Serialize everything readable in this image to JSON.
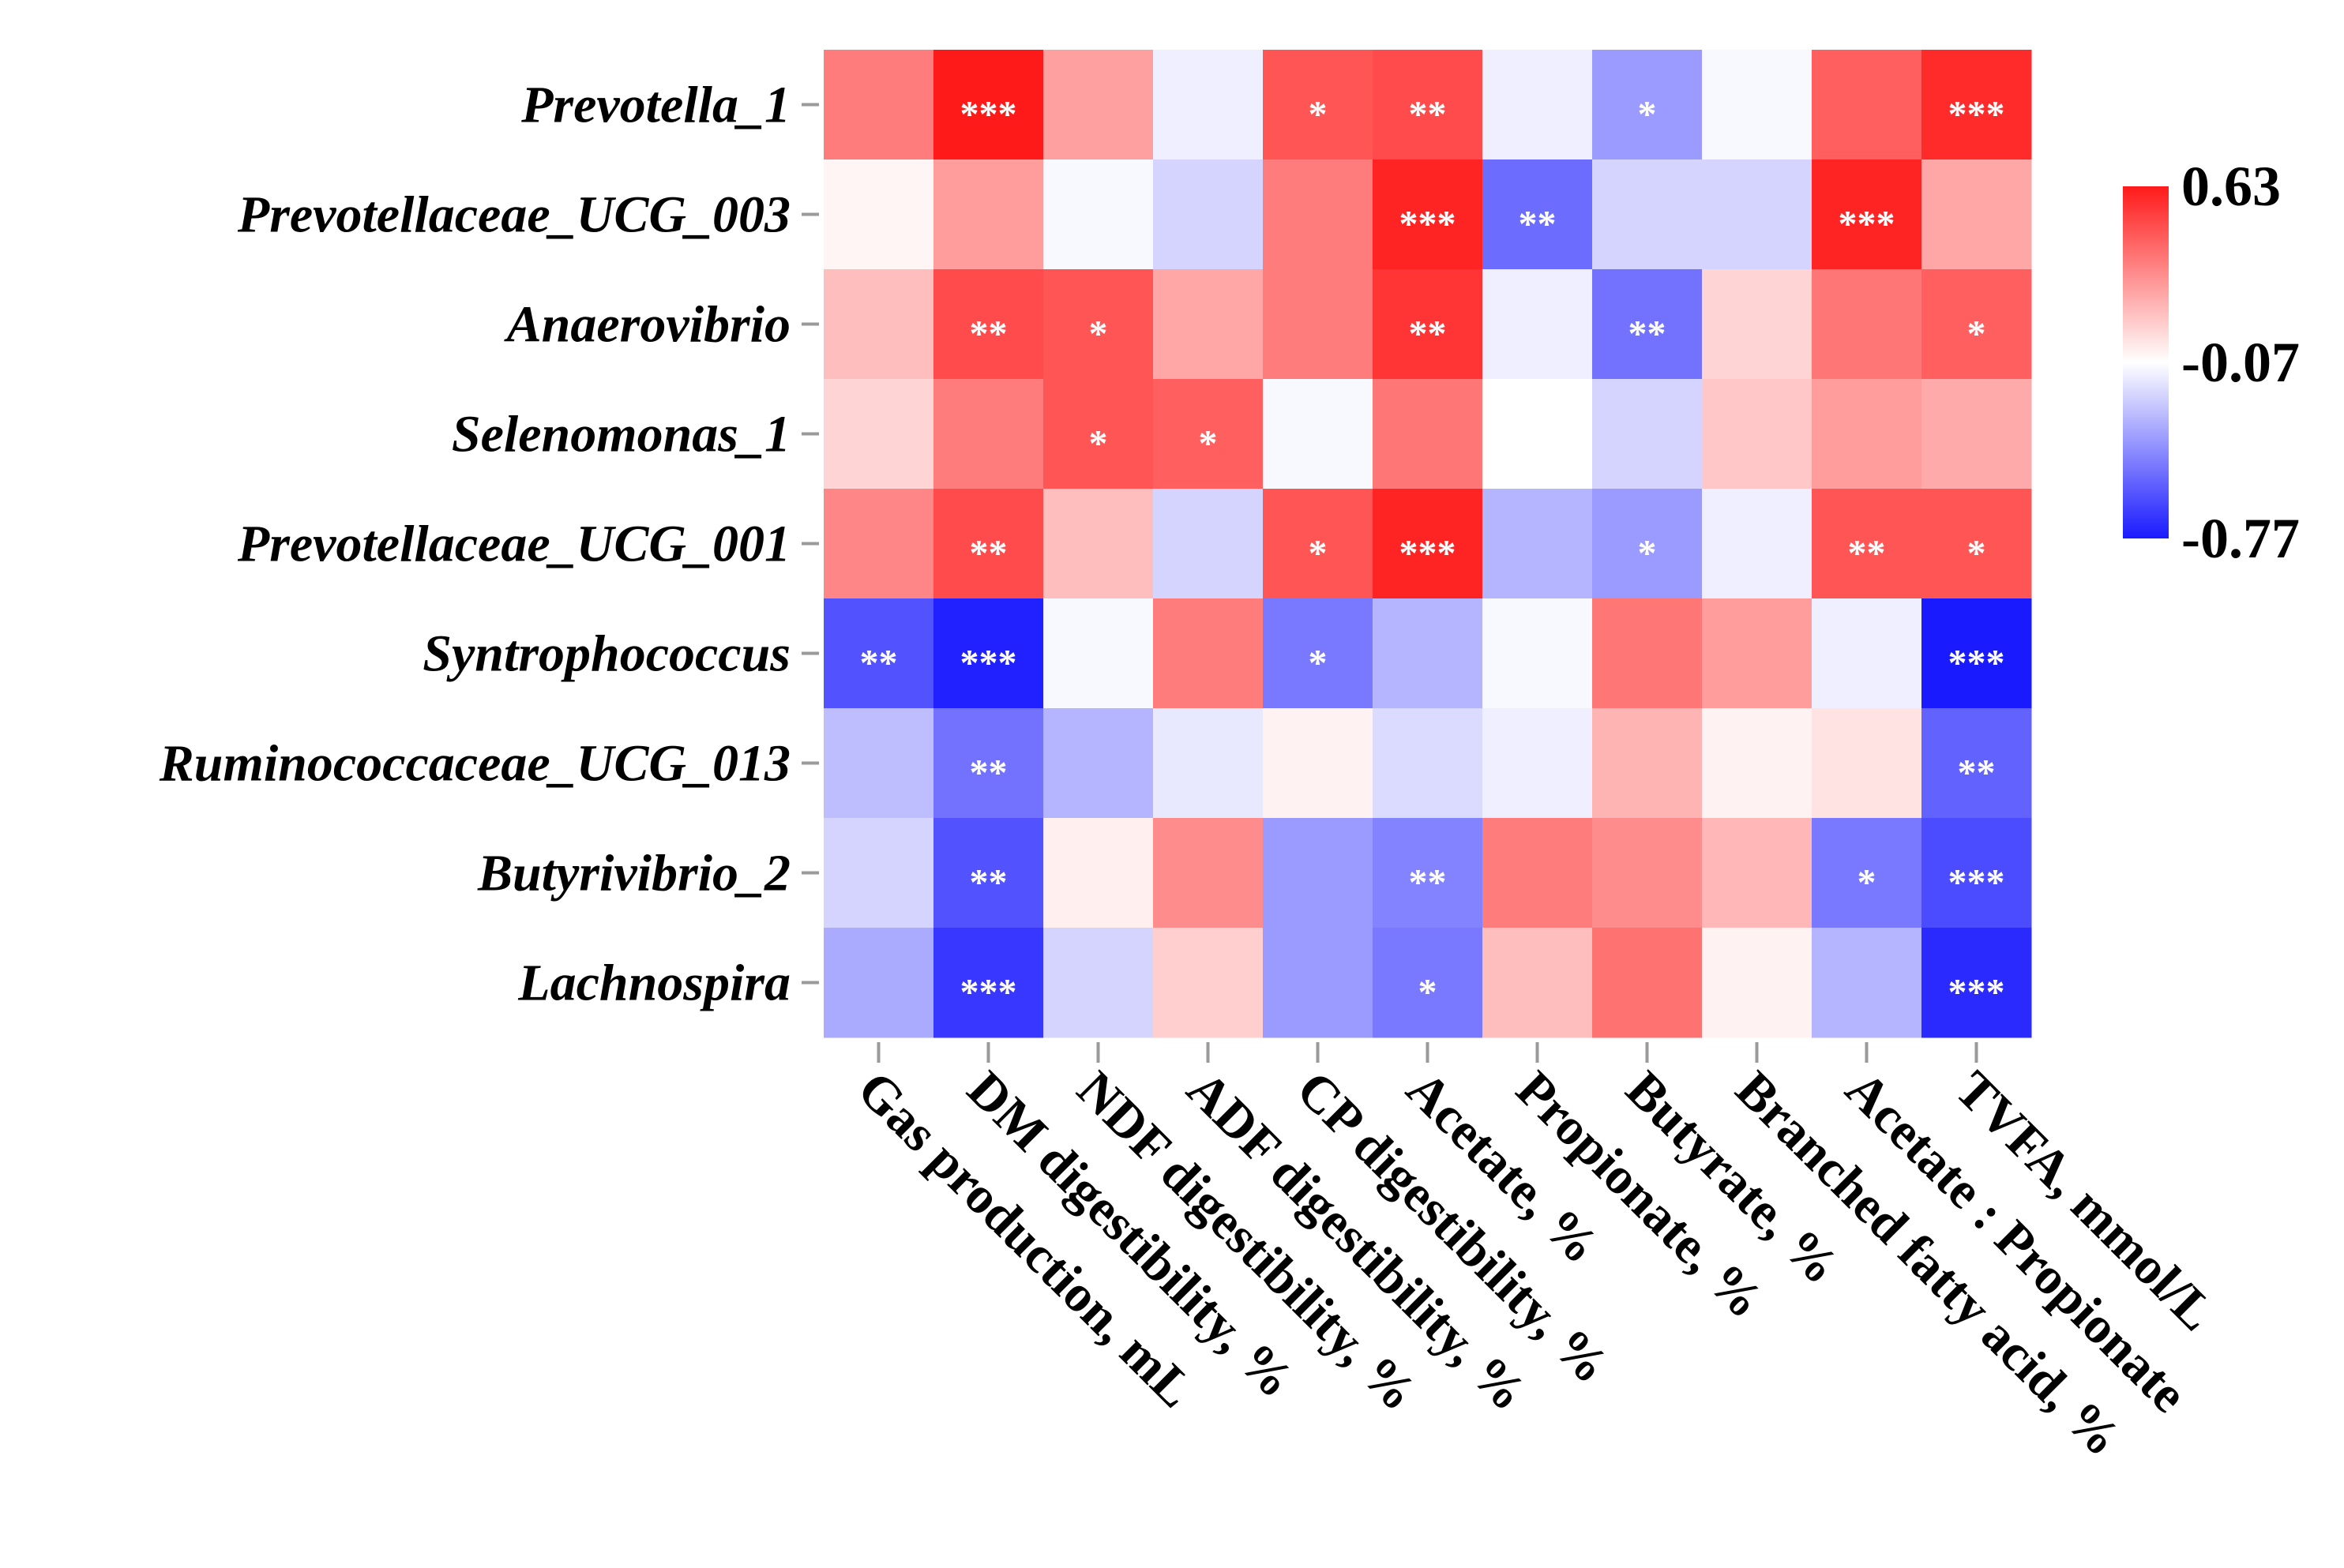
{
  "chart_data": {
    "type": "heatmap",
    "rows": [
      "Prevotella_1",
      "Prevotellaceae_UCG_003",
      "Anaerovibrio",
      "Selenomonas_1",
      "Prevotellaceae_UCG_001",
      "Syntrophococcus",
      "Ruminococcaceae_UCG_013",
      "Butyrivibrio_2",
      "Lachnospira"
    ],
    "columns": [
      "Gas production, mL",
      "DM digestibility, %",
      "NDF digestibility, %",
      "ADF digestibility, %",
      "CP digestibility, %",
      "Acetate, %",
      "Propionate, %",
      "Butyrate, %",
      "Branched fatty acid, %",
      "Acetate : Propionate",
      "TVFA, mmol/L"
    ],
    "values": [
      [
        0.33,
        0.63,
        0.22,
        -0.12,
        0.45,
        0.48,
        -0.12,
        -0.38,
        -0.09,
        0.42,
        0.58
      ],
      [
        -0.04,
        0.23,
        -0.09,
        -0.2,
        0.33,
        0.6,
        -0.52,
        -0.2,
        -0.2,
        0.6,
        0.2
      ],
      [
        0.13,
        0.48,
        0.45,
        0.2,
        0.33,
        0.55,
        -0.12,
        -0.5,
        0.06,
        0.35,
        0.42
      ],
      [
        0.06,
        0.33,
        0.45,
        0.42,
        -0.09,
        0.35,
        -0.07,
        -0.2,
        0.1,
        0.23,
        0.19
      ],
      [
        0.3,
        0.48,
        0.13,
        -0.2,
        0.45,
        0.6,
        -0.3,
        -0.38,
        -0.12,
        0.45,
        0.45
      ],
      [
        -0.6,
        -0.75,
        -0.09,
        0.33,
        -0.48,
        -0.3,
        -0.09,
        0.35,
        0.23,
        -0.12,
        -0.77
      ],
      [
        -0.27,
        -0.5,
        -0.3,
        -0.14,
        -0.03,
        -0.18,
        -0.12,
        0.16,
        -0.03,
        0.02,
        -0.55
      ],
      [
        -0.2,
        -0.6,
        -0.02,
        0.28,
        -0.38,
        -0.45,
        0.33,
        0.28,
        0.15,
        -0.48,
        -0.62
      ],
      [
        -0.33,
        -0.68,
        -0.2,
        0.08,
        -0.38,
        -0.48,
        0.13,
        0.36,
        -0.03,
        -0.3,
        -0.72
      ]
    ],
    "significance": [
      [
        "",
        "***",
        "",
        "",
        "*",
        "**",
        "",
        "*",
        "",
        "",
        "***"
      ],
      [
        "",
        "",
        "",
        "",
        "",
        "***",
        "**",
        "",
        "",
        "***",
        ""
      ],
      [
        "",
        "**",
        "*",
        "",
        "",
        "**",
        "",
        "**",
        "",
        "",
        "*"
      ],
      [
        "",
        "",
        "*",
        "*",
        "",
        "",
        "",
        "",
        "",
        "",
        ""
      ],
      [
        "",
        "**",
        "",
        "",
        "*",
        "***",
        "",
        "*",
        "",
        "**",
        "*"
      ],
      [
        "**",
        "***",
        "",
        "",
        "*",
        "",
        "",
        "",
        "",
        "",
        "***"
      ],
      [
        "",
        "**",
        "",
        "",
        "",
        "",
        "",
        "",
        "",
        "",
        "**"
      ],
      [
        "",
        "**",
        "",
        "",
        "",
        "**",
        "",
        "",
        "",
        "*",
        "***"
      ],
      [
        "",
        "***",
        "",
        "",
        "",
        "*",
        "",
        "",
        "",
        "",
        "***"
      ]
    ],
    "colorbar": {
      "max": 0.63,
      "mid": -0.07,
      "min": -0.77,
      "labels": [
        "0.63",
        "-0.07",
        "-0.77"
      ],
      "colors": {
        "high": "#ff1a1a",
        "mid": "#ffffff",
        "low": "#1a1aff"
      }
    }
  }
}
